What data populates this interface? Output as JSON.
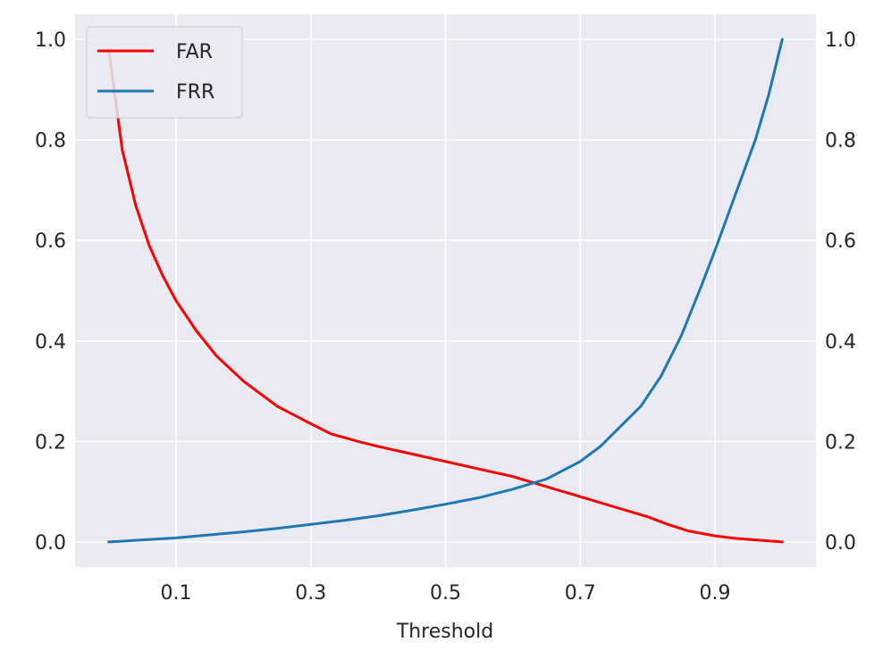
{
  "chart_data": {
    "type": "line",
    "title": "",
    "xlabel": "Threshold",
    "ylabel": "",
    "xlim": [
      -0.05,
      1.05
    ],
    "ylim": [
      -0.05,
      1.05
    ],
    "x_ticks": [
      0.1,
      0.3,
      0.5,
      0.7,
      0.9
    ],
    "x_tick_labels": [
      "0.1",
      "0.3",
      "0.5",
      "0.7",
      "0.9"
    ],
    "y_ticks": [
      0.0,
      0.2,
      0.4,
      0.6,
      0.8,
      1.0
    ],
    "y_tick_labels": [
      "0.0",
      "0.2",
      "0.4",
      "0.6",
      "0.8",
      "1.0"
    ],
    "y_ticks_right": true,
    "grid": true,
    "background": "#EAEAF2",
    "legend_position": "top-left",
    "series": [
      {
        "name": "FAR",
        "color": "#FF0000",
        "x": [
          0.0,
          0.02,
          0.04,
          0.06,
          0.08,
          0.1,
          0.13,
          0.16,
          0.2,
          0.25,
          0.3,
          0.33,
          0.37,
          0.4,
          0.45,
          0.5,
          0.55,
          0.6,
          0.65,
          0.7,
          0.75,
          0.8,
          0.83,
          0.86,
          0.9,
          0.93,
          0.96,
          1.0
        ],
        "y": [
          0.98,
          0.78,
          0.67,
          0.59,
          0.53,
          0.48,
          0.42,
          0.37,
          0.32,
          0.27,
          0.235,
          0.215,
          0.2,
          0.19,
          0.175,
          0.16,
          0.145,
          0.13,
          0.11,
          0.09,
          0.07,
          0.05,
          0.035,
          0.022,
          0.012,
          0.007,
          0.004,
          0.0
        ]
      },
      {
        "name": "FRR",
        "color": "#1F77B4",
        "x": [
          0.0,
          0.05,
          0.1,
          0.15,
          0.2,
          0.25,
          0.3,
          0.35,
          0.4,
          0.45,
          0.5,
          0.55,
          0.6,
          0.65,
          0.7,
          0.73,
          0.76,
          0.79,
          0.82,
          0.85,
          0.88,
          0.9,
          0.93,
          0.96,
          0.98,
          1.0
        ],
        "y": [
          0.0,
          0.004,
          0.008,
          0.014,
          0.02,
          0.027,
          0.035,
          0.043,
          0.052,
          0.063,
          0.075,
          0.088,
          0.105,
          0.125,
          0.16,
          0.19,
          0.23,
          0.27,
          0.33,
          0.41,
          0.51,
          0.58,
          0.69,
          0.8,
          0.89,
          1.0
        ]
      }
    ]
  }
}
